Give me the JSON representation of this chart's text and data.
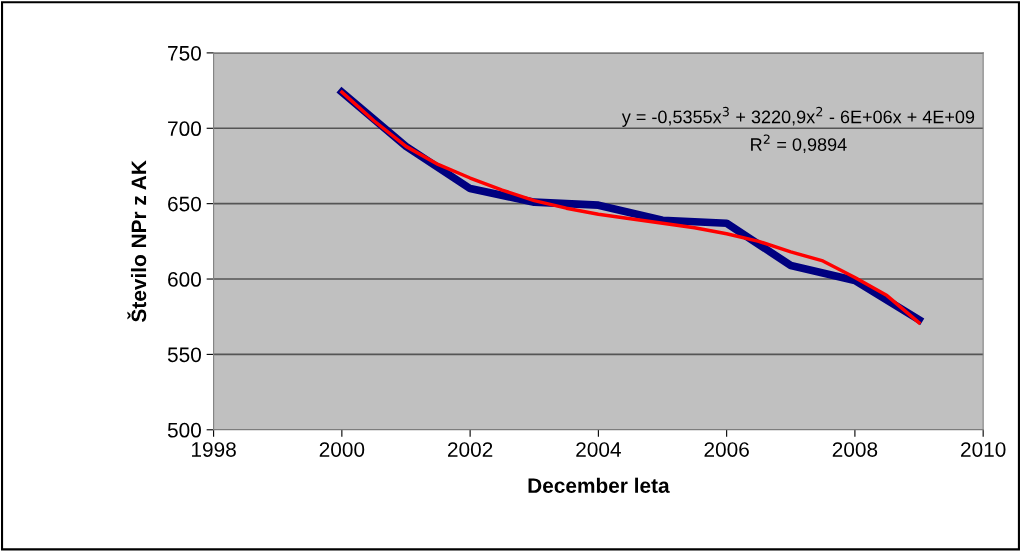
{
  "chart_data": {
    "type": "line",
    "xlabel": "December leta",
    "ylabel": "Število NPr z AK",
    "x": [
      2000,
      2001,
      2002,
      2003,
      2004,
      2005,
      2006,
      2007,
      2008,
      2009
    ],
    "series": [
      {
        "color": "#000080",
        "values": [
          724,
          688,
          660,
          651,
          649,
          639,
          637,
          609,
          599,
          573
        ]
      },
      {
        "color": "#ff0000",
        "x": [
          2000,
          2000.5,
          2001,
          2001.5,
          2002,
          2002.5,
          2003,
          2003.5,
          2004,
          2004.5,
          2005,
          2005.5,
          2006,
          2006.5,
          2007,
          2007.5,
          2008,
          2008.5,
          2009
        ],
        "values": [
          724,
          705,
          688,
          676,
          667,
          659,
          652,
          647,
          643,
          640,
          637,
          634,
          630,
          625,
          618,
          612,
          601,
          589,
          571
        ]
      }
    ],
    "annotations": [
      "y = -0,5355x$^{3}$ + 3220,9x$^{2}$ - 6E+06x + 4E+09",
      "R$^{2}$ = 0,9894"
    ],
    "xlim": [
      1998,
      2010
    ],
    "xticks": [
      1998,
      2000,
      2002,
      2004,
      2006,
      2008,
      2010
    ],
    "ylim": [
      500,
      750
    ],
    "yticks": [
      500,
      550,
      600,
      650,
      700,
      750
    ],
    "grid": "y",
    "legend": false,
    "marker": "none",
    "line_style": "solid"
  }
}
